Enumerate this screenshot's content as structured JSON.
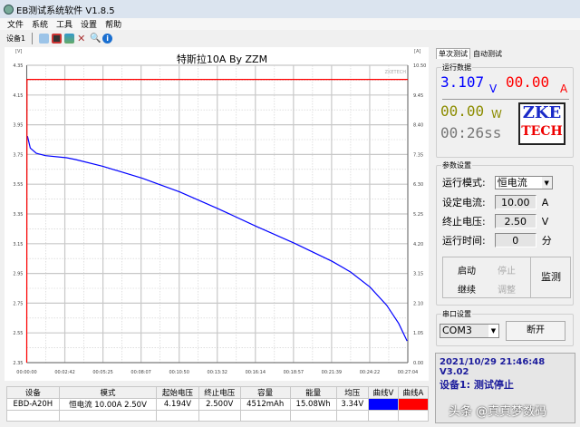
{
  "window": {
    "title": "EB测试系统软件 V1.8.5"
  },
  "menu": [
    "文件",
    "系统",
    "工具",
    "设置",
    "帮助"
  ],
  "toolbar": {
    "device_tab": "设备1",
    "icons": [
      "open-folder-icon",
      "save-icon",
      "image-icon",
      "tools-icon",
      "search-icon",
      "info-icon"
    ]
  },
  "chart_data": {
    "type": "line",
    "title": "特斯拉10A By ZZM",
    "watermark": "ZKETECH",
    "ylabel_left": "[V]",
    "ylabel_right": "[A]",
    "ylim_left": [
      2.35,
      4.35
    ],
    "ylim_right": [
      0,
      10.5
    ],
    "xlim": [
      "00:00:00",
      "00:27:04"
    ],
    "yticks_left": [
      "4.35",
      "4.15",
      "3.95",
      "3.75",
      "3.55",
      "3.35",
      "3.15",
      "2.95",
      "2.75",
      "2.55",
      "2.35"
    ],
    "yticks_right": [
      "10.50",
      "9.45",
      "8.40",
      "7.35",
      "6.30",
      "5.25",
      "4.20",
      "3.15",
      "2.10",
      "1.05",
      "0.00"
    ],
    "xticks": [
      "00:00:00",
      "00:02:42",
      "00:05:25",
      "00:08:07",
      "00:10:50",
      "00:13:32",
      "00:16:14",
      "00:18:57",
      "00:21:39",
      "00:24:22",
      "00:27:04"
    ],
    "grid": true,
    "series": [
      {
        "axis": "left",
        "color": "#0000ff",
        "x": [
          "00:00:03",
          "00:00:15",
          "00:00:41",
          "00:01:20",
          "00:02:50",
          "00:03:28",
          "00:05:24",
          "00:08:12",
          "00:10:52",
          "00:13:33",
          "00:16:20",
          "00:19:01",
          "00:21:42",
          "00:23:00",
          "00:24:23",
          "00:25:34",
          "00:26:25",
          "00:27:01"
        ],
        "y": [
          3.874,
          3.793,
          3.758,
          3.742,
          3.728,
          3.716,
          3.671,
          3.59,
          3.498,
          3.387,
          3.265,
          3.153,
          3.031,
          2.96,
          2.858,
          2.736,
          2.614,
          2.496
        ]
      },
      {
        "axis": "right",
        "color": "#ff0000",
        "x": [
          "00:00:00",
          "00:00:01",
          "00:27:04"
        ],
        "y": [
          0,
          10.0,
          10.0
        ]
      }
    ]
  },
  "table": {
    "headers": [
      "设备",
      "模式",
      "起始电压",
      "终止电压",
      "容量",
      "能量",
      "均压",
      "曲线V",
      "曲线A"
    ],
    "rows": [
      [
        "EBD-A20H",
        "恒电流  10.00A  2.50V",
        "4.194V",
        "2.500V",
        "4512mAh",
        "15.08Wh",
        "3.34V",
        "",
        ""
      ]
    ],
    "curve_colors": [
      "#0000ff",
      "#ff0000"
    ]
  },
  "right": {
    "tabs": [
      "单次测试",
      "自动测试"
    ],
    "run": {
      "label": "运行数据",
      "voltage": "3.107",
      "v_unit": "V",
      "current": "00.00",
      "a_unit": "A",
      "power": "00.00",
      "w_unit": "W",
      "time": "00:26ss",
      "logo_top": "ZKE",
      "logo_bottom": "TECH"
    },
    "params": {
      "label": "参数设置",
      "mode_label": "运行模式:",
      "mode": "恒电流",
      "current_label": "设定电流:",
      "current": "10.00",
      "current_unit": "A",
      "cutoff_label": "终止电压:",
      "cutoff": "2.50",
      "cutoff_unit": "V",
      "time_label": "运行时间:",
      "time": "0",
      "time_unit": "分",
      "start": "启动",
      "stop": "停止",
      "cont": "继续",
      "adjust": "调整",
      "monitor": "监测"
    },
    "serial": {
      "label": "串口设置",
      "port": "COM3",
      "disconnect": "断开"
    },
    "status": {
      "line1": "2021/10/29 21:46:48  V3.02",
      "line2": "设备1: 测试停止",
      "watermark": "头条 @真真梦数码"
    }
  }
}
